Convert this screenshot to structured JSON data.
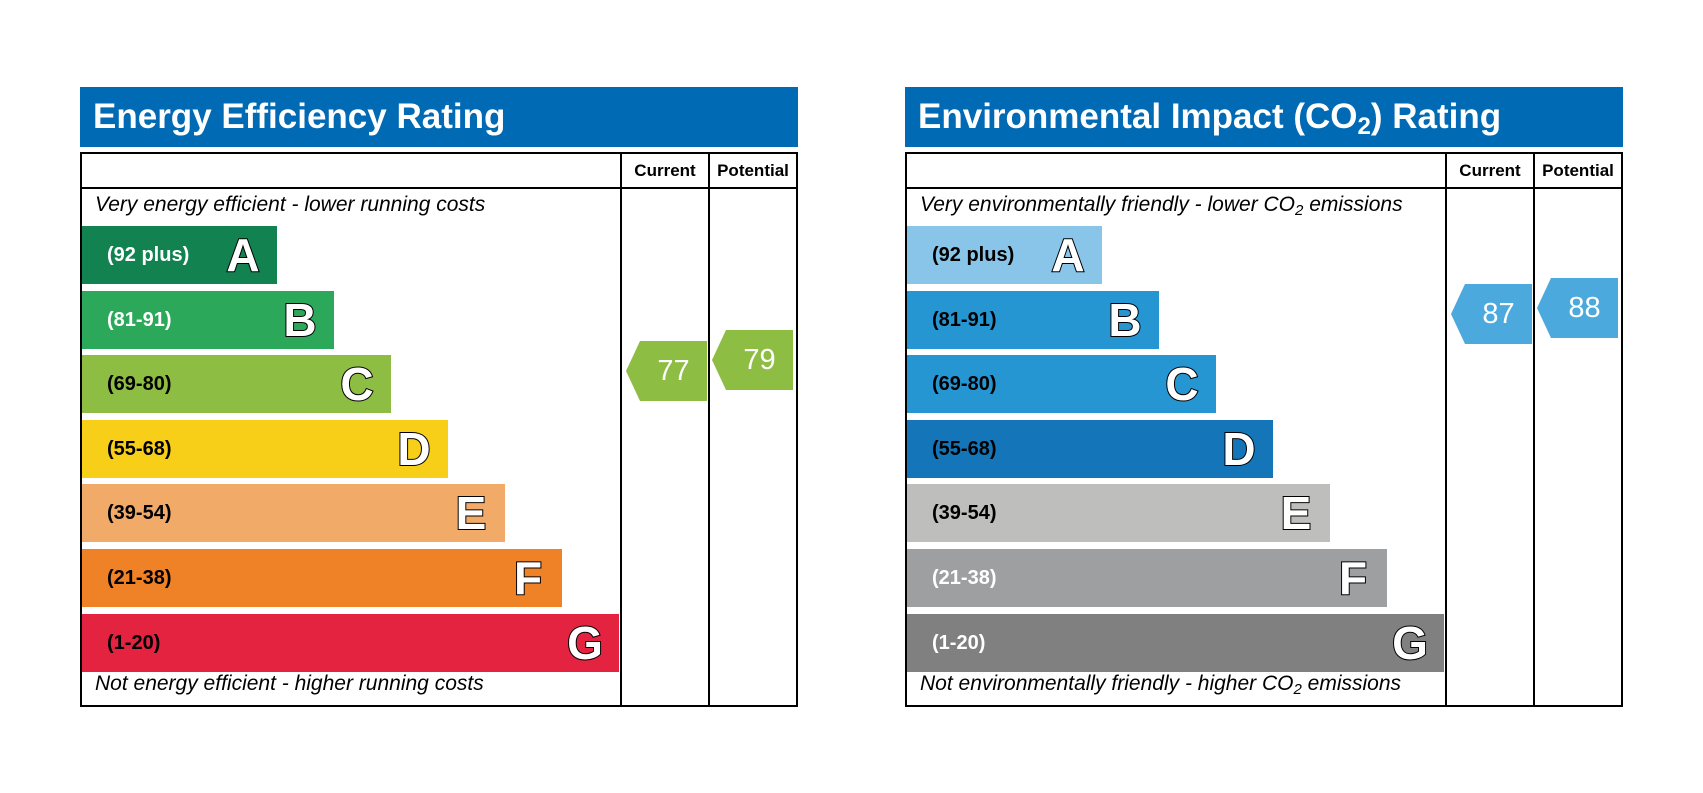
{
  "chart_data": [
    {
      "type": "table",
      "id": "energy",
      "title": "Energy Efficiency Rating",
      "title_sub": "",
      "title_after": "",
      "title_color": "#006AB4",
      "columns": [
        "Current",
        "Potential"
      ],
      "top_note": "Very energy efficient - lower running costs",
      "top_note_sub": "",
      "top_note_after": "",
      "bottom_note": "Not energy efficient - higher running costs",
      "bottom_note_sub": "",
      "bottom_note_after": "",
      "bands": [
        {
          "letter": "A",
          "range": "(92 plus)",
          "color": "#128251",
          "text_color": "#ffffff"
        },
        {
          "letter": "B",
          "range": "(81-91)",
          "color": "#2CA85A",
          "text_color": "#ffffff"
        },
        {
          "letter": "C",
          "range": "(69-80)",
          "color": "#8DBE43",
          "text_color": "#000000"
        },
        {
          "letter": "D",
          "range": "(55-68)",
          "color": "#F7CE18",
          "text_color": "#000000"
        },
        {
          "letter": "E",
          "range": "(39-54)",
          "color": "#F2AA69",
          "text_color": "#000000"
        },
        {
          "letter": "F",
          "range": "(21-38)",
          "color": "#EF8126",
          "text_color": "#000000"
        },
        {
          "letter": "G",
          "range": "(1-20)",
          "color": "#E32340",
          "text_color": "#000000"
        }
      ],
      "current": {
        "value": "77",
        "color": "#8DBE43"
      },
      "potential": {
        "value": "79",
        "color": "#8DBE43"
      }
    },
    {
      "type": "table",
      "id": "environmental",
      "title": "Environmental Impact (CO",
      "title_sub": "2",
      "title_after": ") Rating",
      "title_color": "#006AB4",
      "columns": [
        "Current",
        "Potential"
      ],
      "top_note": "Very environmentally friendly - lower CO",
      "top_note_sub": "2",
      "top_note_after": " emissions",
      "bottom_note": "Not environmentally friendly - higher CO",
      "bottom_note_sub": "2",
      "bottom_note_after": " emissions",
      "bands": [
        {
          "letter": "A",
          "range": "(92 plus)",
          "color": "#88C5E8",
          "text_color": "#000000"
        },
        {
          "letter": "B",
          "range": "(81-91)",
          "color": "#2696D3",
          "text_color": "#000000"
        },
        {
          "letter": "C",
          "range": "(69-80)",
          "color": "#2696D3",
          "text_color": "#000000"
        },
        {
          "letter": "D",
          "range": "(55-68)",
          "color": "#1476B9",
          "text_color": "#000000"
        },
        {
          "letter": "E",
          "range": "(39-54)",
          "color": "#BEBEBC",
          "text_color": "#000000"
        },
        {
          "letter": "F",
          "range": "(21-38)",
          "color": "#9E9FA1",
          "text_color": "#ffffff"
        },
        {
          "letter": "G",
          "range": "(1-20)",
          "color": "#808080",
          "text_color": "#ffffff"
        }
      ],
      "current": {
        "value": "87",
        "color": "#4CA9DD"
      },
      "potential": {
        "value": "88",
        "color": "#4CA9DD"
      }
    }
  ]
}
